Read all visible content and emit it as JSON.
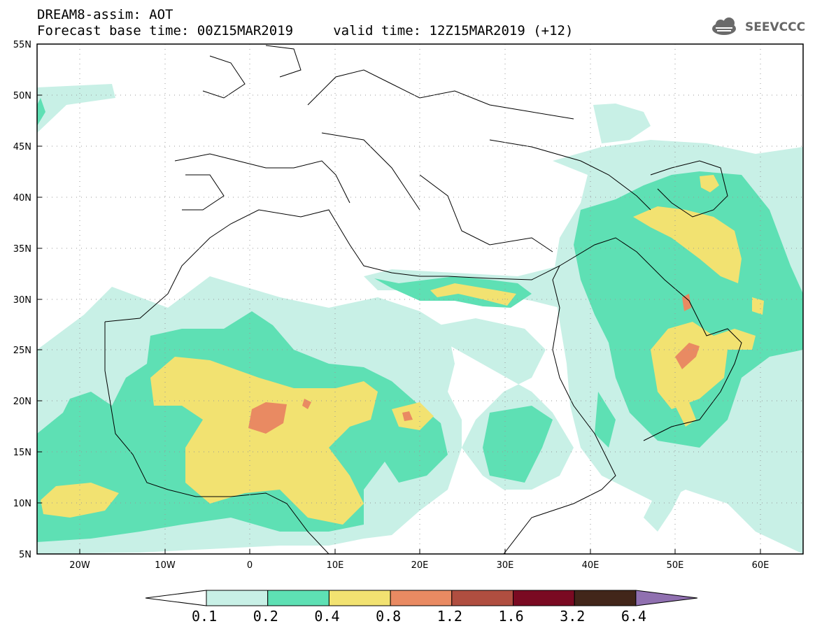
{
  "header": {
    "title_line1": "DREAM8-assim: AOT",
    "title_line2": "Forecast base time: 00Z15MAR2019     valid time: 12Z15MAR2019 (+12)"
  },
  "logo": {
    "text": "SEEVCCC",
    "icon": "cloud-icon"
  },
  "map": {
    "lon_labels": [
      "20W",
      "10W",
      "0",
      "10E",
      "20E",
      "30E",
      "40E",
      "50E",
      "60E"
    ],
    "lat_labels": [
      "55N",
      "50N",
      "45N",
      "40N",
      "35N",
      "30N",
      "25N",
      "20N",
      "15N",
      "10N",
      "5N"
    ],
    "lon_range": [
      -25,
      65
    ],
    "lat_range": [
      5,
      55
    ]
  },
  "colorbar": {
    "labels": [
      "0.1",
      "0.2",
      "0.4",
      "0.8",
      "1.2",
      "1.6",
      "3.2",
      "6.4"
    ],
    "colors": [
      "#ffffff",
      "#c8f0e6",
      "#5ee0b4",
      "#f2e271",
      "#e98a62",
      "#b04e40",
      "#7a0a22",
      "#42261a",
      "#9070b0"
    ]
  }
}
